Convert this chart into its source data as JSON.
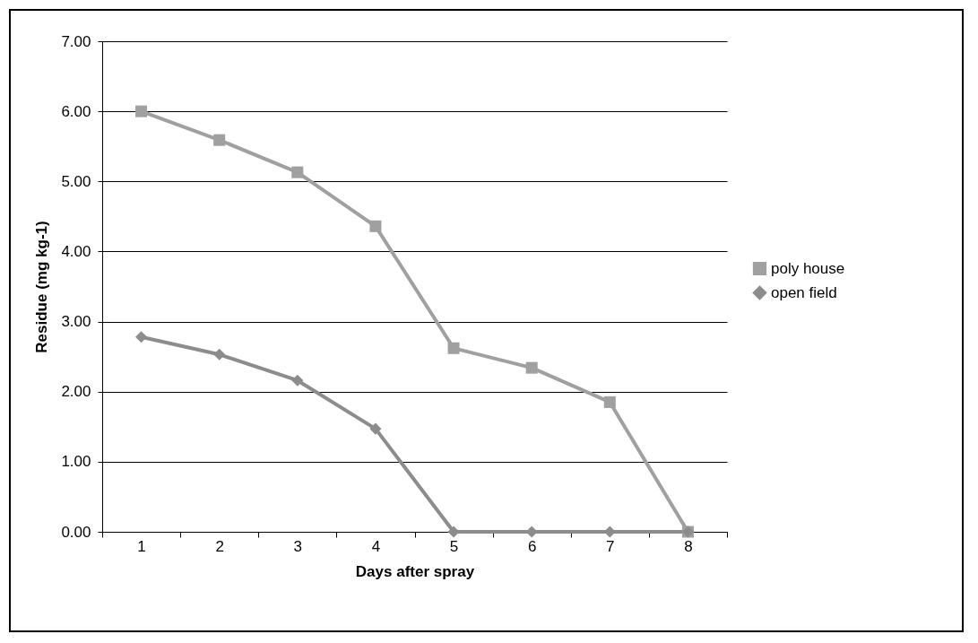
{
  "chart_data": {
    "type": "line",
    "xlabel": "Days after spray",
    "ylabel": "Residue (mg kg-1)",
    "categories": [
      "1",
      "2",
      "3",
      "4",
      "5",
      "6",
      "7",
      "8"
    ],
    "series": [
      {
        "name": "poly house",
        "color": "#a0a0a0",
        "marker": "square",
        "values": [
          6.0,
          5.59,
          5.13,
          4.36,
          2.62,
          2.34,
          1.85,
          0
        ]
      },
      {
        "name": "open field",
        "color": "#8c8c8c",
        "marker": "diamond",
        "values": [
          2.78,
          2.53,
          2.16,
          1.47,
          0,
          0,
          0,
          0
        ]
      }
    ],
    "ylim": [
      0,
      7
    ],
    "yticks": [
      {
        "value": 0,
        "label": "0.00"
      },
      {
        "value": 1,
        "label": "1.00"
      },
      {
        "value": 2,
        "label": "2.00"
      },
      {
        "value": 3,
        "label": "3.00"
      },
      {
        "value": 4,
        "label": "4.00"
      },
      {
        "value": 5,
        "label": "5.00"
      },
      {
        "value": 6,
        "label": "6.00"
      },
      {
        "value": 7,
        "label": "7.00"
      }
    ],
    "grid": "y",
    "legend": "right",
    "line_style": "solid"
  }
}
